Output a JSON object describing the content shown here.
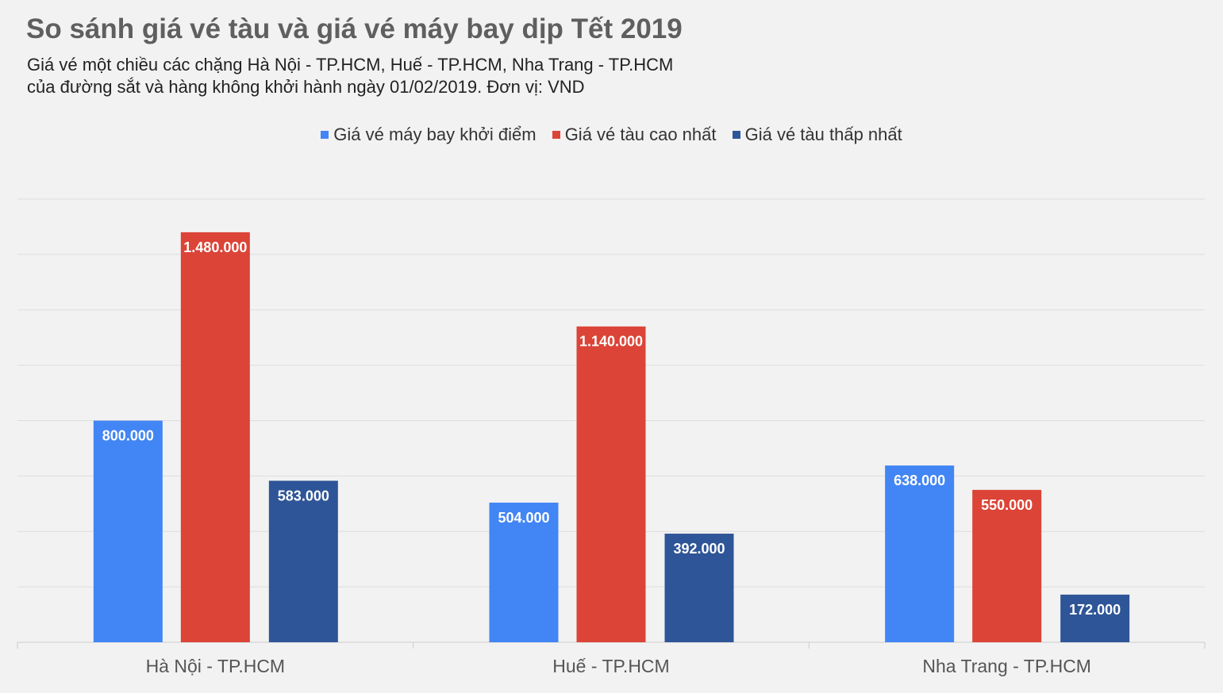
{
  "chart_data": {
    "type": "bar",
    "title": "So sánh giá vé tàu và giá vé máy bay dịp Tết 2019",
    "subtitle": [
      "Giá vé một chiều các chặng Hà Nội - TP.HCM, Huế - TP.HCM, Nha Trang - TP.HCM",
      "của đường sắt và hàng không khởi hành ngày 01/02/2019. Đơn vị: VND"
    ],
    "categories": [
      "Hà Nội - TP.HCM",
      "Huế - TP.HCM",
      "Nha Trang - TP.HCM"
    ],
    "series": [
      {
        "name": "Giá vé máy bay khởi điểm",
        "color": "#4285f4",
        "values": [
          800000,
          504000,
          638000
        ],
        "labels": [
          "800.000",
          "504.000",
          "638.000"
        ]
      },
      {
        "name": "Giá vé tàu cao nhất",
        "color": "#db4437",
        "values": [
          1480000,
          1140000,
          550000
        ],
        "labels": [
          "1.480.000",
          "1.140.000",
          "550.000"
        ]
      },
      {
        "name": "Giá vé tàu thấp nhất",
        "color": "#2e5597",
        "values": [
          583000,
          392000,
          172000
        ],
        "labels": [
          "583.000",
          "392.000",
          "172.000"
        ]
      }
    ],
    "xlabel": "",
    "ylabel": "",
    "ylim": [
      0,
      1600000
    ],
    "grid": true,
    "legend_position": "top"
  }
}
